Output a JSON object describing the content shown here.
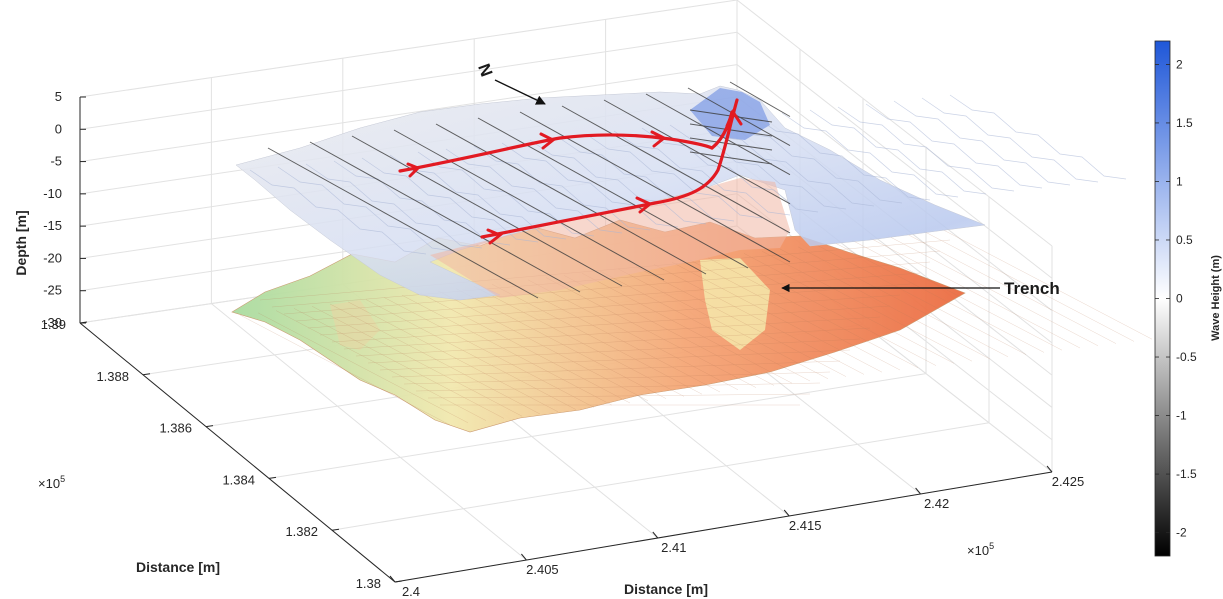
{
  "chart_data": {
    "type": "surface",
    "xlabel": "Distance [m]",
    "ylabel": "Distance [m]",
    "zlabel": "Depth [m]",
    "x_multiplier": "×10",
    "x_multiplier_exp": "5",
    "y_multiplier": "×10",
    "y_multiplier_exp": "5",
    "x_ticks": [
      "2.4",
      "2.405",
      "2.41",
      "2.415",
      "2.42",
      "2.425"
    ],
    "y_ticks": [
      "1.38",
      "1.382",
      "1.384",
      "1.386",
      "1.388",
      "1.39"
    ],
    "z_ticks": [
      "5",
      "0",
      "-5",
      "-10",
      "-15",
      "-20",
      "-25",
      "-30"
    ],
    "xlim": [
      240000,
      242500
    ],
    "ylim": [
      138000,
      139000
    ],
    "zlim": [
      -30,
      5
    ],
    "grid": true,
    "colorbar": {
      "label": "Wave Height (m)",
      "ticks": [
        "2",
        "1.5",
        "1",
        "0.5",
        "0",
        "-0.5",
        "-1",
        "-1.5",
        "-2"
      ],
      "range": [
        -2.2,
        2.2
      ],
      "colormap": [
        "#000000",
        "#ffffff",
        "#1f57d8"
      ]
    },
    "bathymetry_colormap": [
      "#a8dca0",
      "#f2eab0",
      "#f6a070",
      "#ee7045"
    ],
    "annotations": {
      "north_label": "N",
      "trench_label": "Trench"
    },
    "ray_color": "#e21a22"
  }
}
